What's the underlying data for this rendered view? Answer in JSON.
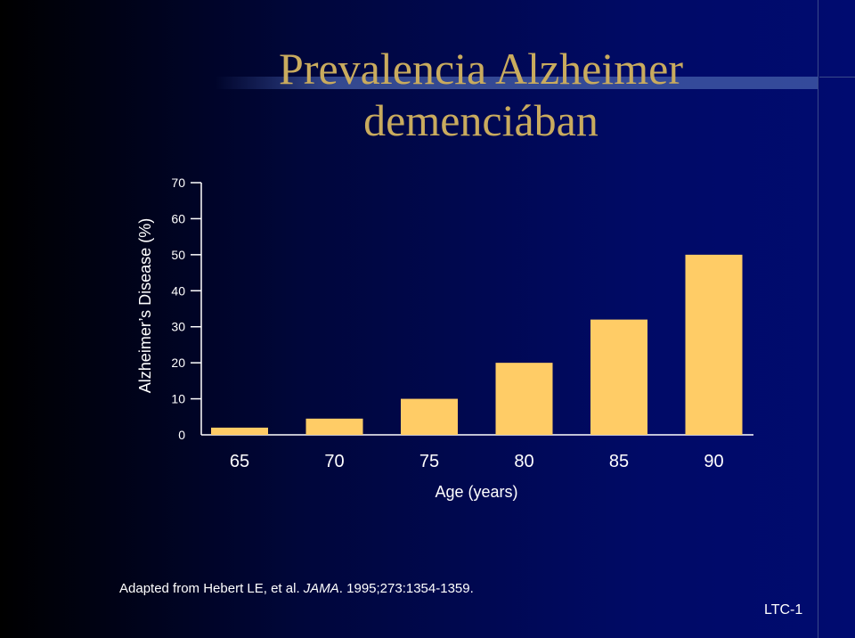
{
  "title": [
    "Prevalencia Alzheimer",
    "demenciában"
  ],
  "chart_data": {
    "type": "bar",
    "categories": [
      "65",
      "70",
      "75",
      "80",
      "85",
      "90"
    ],
    "values": [
      2,
      4.5,
      10,
      20,
      32,
      50
    ],
    "xlabel": "Age (years)",
    "ylabel": "Alzheimer’s Disease (%)",
    "ylim": [
      0,
      70
    ],
    "yticks": [
      0,
      10,
      20,
      30,
      40,
      50,
      60,
      70
    ],
    "bar_color": "#ffcc66",
    "grid": false
  },
  "citation": {
    "pre": "Adapted from Hebert LE, et al. ",
    "journal": "JAMA",
    "post": ". 1995;273:1354-1359."
  },
  "slide_code": "LTC-1",
  "colors": {
    "background": "#000a66",
    "title": "#c9ab5e",
    "text": "#ffffff"
  }
}
